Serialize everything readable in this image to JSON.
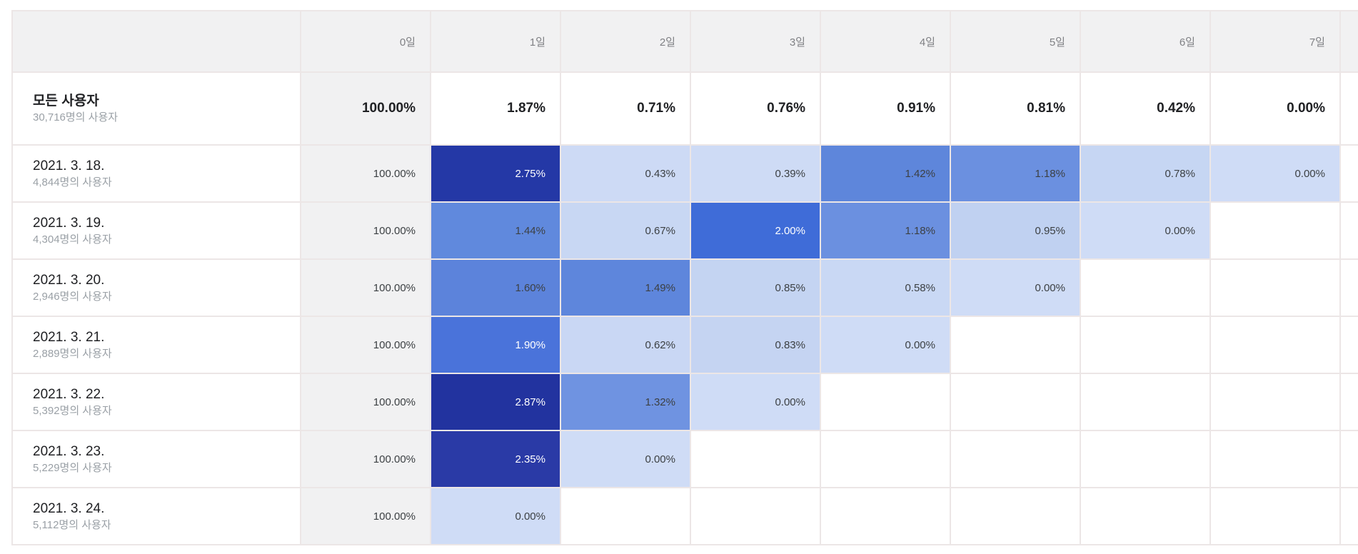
{
  "table": {
    "day_headers": [
      "0일",
      "1일",
      "2일",
      "3일",
      "4일",
      "5일",
      "6일",
      "7일"
    ],
    "all_users": {
      "title": "모든 사용자",
      "subtitle": "30,716명의 사용자",
      "cells": [
        {
          "v": "100.00%",
          "bg": "#f1f1f2",
          "fg": "#202124"
        },
        {
          "v": "1.87%",
          "bg": "#ffffff",
          "fg": "#202124"
        },
        {
          "v": "0.71%",
          "bg": "#ffffff",
          "fg": "#202124"
        },
        {
          "v": "0.76%",
          "bg": "#ffffff",
          "fg": "#202124"
        },
        {
          "v": "0.91%",
          "bg": "#ffffff",
          "fg": "#202124"
        },
        {
          "v": "0.81%",
          "bg": "#ffffff",
          "fg": "#202124"
        },
        {
          "v": "0.42%",
          "bg": "#ffffff",
          "fg": "#202124"
        },
        {
          "v": "0.00%",
          "bg": "#ffffff",
          "fg": "#202124"
        }
      ]
    },
    "cohorts": [
      {
        "date": "2021. 3. 18.",
        "subtitle": "4,844명의 사용자",
        "cells": [
          {
            "v": "100.00%",
            "bg": "#f1f1f2",
            "fg": "#3c4043"
          },
          {
            "v": "2.75%",
            "bg": "#2438a6",
            "fg": "#ffffff"
          },
          {
            "v": "0.43%",
            "bg": "#cddaf5",
            "fg": "#3c4043"
          },
          {
            "v": "0.39%",
            "bg": "#cedbf5",
            "fg": "#3c4043"
          },
          {
            "v": "1.42%",
            "bg": "#5e86db",
            "fg": "#3c4043"
          },
          {
            "v": "1.18%",
            "bg": "#6b90e0",
            "fg": "#3c4043"
          },
          {
            "v": "0.78%",
            "bg": "#c6d6f3",
            "fg": "#3c4043"
          },
          {
            "v": "0.00%",
            "bg": "#cfdcf6",
            "fg": "#3c4043"
          }
        ]
      },
      {
        "date": "2021. 3. 19.",
        "subtitle": "4,304명의 사용자",
        "cells": [
          {
            "v": "100.00%",
            "bg": "#f1f1f2",
            "fg": "#3c4043"
          },
          {
            "v": "1.44%",
            "bg": "#6089dd",
            "fg": "#3c4043"
          },
          {
            "v": "0.67%",
            "bg": "#c8d7f3",
            "fg": "#3c4043"
          },
          {
            "v": "2.00%",
            "bg": "#3f6cd8",
            "fg": "#ffffff"
          },
          {
            "v": "1.18%",
            "bg": "#6b90e0",
            "fg": "#3c4043"
          },
          {
            "v": "0.95%",
            "bg": "#c0d1f1",
            "fg": "#3c4043"
          },
          {
            "v": "0.00%",
            "bg": "#cfdcf6",
            "fg": "#3c4043"
          },
          null
        ]
      },
      {
        "date": "2021. 3. 20.",
        "subtitle": "2,946명의 사용자",
        "cells": [
          {
            "v": "100.00%",
            "bg": "#f1f1f2",
            "fg": "#3c4043"
          },
          {
            "v": "1.60%",
            "bg": "#5c83db",
            "fg": "#3c4043"
          },
          {
            "v": "1.49%",
            "bg": "#5e86dc",
            "fg": "#3c4043"
          },
          {
            "v": "0.85%",
            "bg": "#c4d4f2",
            "fg": "#3c4043"
          },
          {
            "v": "0.58%",
            "bg": "#c9d8f4",
            "fg": "#3c4043"
          },
          {
            "v": "0.00%",
            "bg": "#cfdcf6",
            "fg": "#3c4043"
          },
          null,
          null
        ]
      },
      {
        "date": "2021. 3. 21.",
        "subtitle": "2,889명의 사용자",
        "cells": [
          {
            "v": "100.00%",
            "bg": "#f1f1f2",
            "fg": "#3c4043"
          },
          {
            "v": "1.90%",
            "bg": "#4a73da",
            "fg": "#ffffff"
          },
          {
            "v": "0.62%",
            "bg": "#c9d7f4",
            "fg": "#3c4043"
          },
          {
            "v": "0.83%",
            "bg": "#c5d4f2",
            "fg": "#3c4043"
          },
          {
            "v": "0.00%",
            "bg": "#cfdcf6",
            "fg": "#3c4043"
          },
          null,
          null,
          null
        ]
      },
      {
        "date": "2021. 3. 22.",
        "subtitle": "5,392명의 사용자",
        "cells": [
          {
            "v": "100.00%",
            "bg": "#f1f1f2",
            "fg": "#3c4043"
          },
          {
            "v": "2.87%",
            "bg": "#22339f",
            "fg": "#ffffff"
          },
          {
            "v": "1.32%",
            "bg": "#6f93e1",
            "fg": "#3c4043"
          },
          {
            "v": "0.00%",
            "bg": "#cfdcf6",
            "fg": "#3c4043"
          },
          null,
          null,
          null,
          null
        ]
      },
      {
        "date": "2021. 3. 23.",
        "subtitle": "5,229명의 사용자",
        "cells": [
          {
            "v": "100.00%",
            "bg": "#f1f1f2",
            "fg": "#3c4043"
          },
          {
            "v": "2.35%",
            "bg": "#2a3aa6",
            "fg": "#ffffff"
          },
          {
            "v": "0.00%",
            "bg": "#cfdcf6",
            "fg": "#3c4043"
          },
          null,
          null,
          null,
          null,
          null
        ]
      },
      {
        "date": "2021. 3. 24.",
        "subtitle": "5,112명의 사용자",
        "cells": [
          {
            "v": "100.00%",
            "bg": "#f1f1f2",
            "fg": "#3c4043"
          },
          {
            "v": "0.00%",
            "bg": "#cfdcf6",
            "fg": "#3c4043"
          },
          null,
          null,
          null,
          null,
          null,
          null
        ]
      }
    ],
    "colors": {
      "header_bg": "#f1f1f2",
      "header_text": "#7f8084",
      "grid_line": "#ece6e6",
      "title_text": "#202124",
      "subtitle_text": "#9aa0a6",
      "value_text": "#3c4043",
      "value_text_on_dark": "#ffffff",
      "heat_min": "#cfdcf6",
      "heat_max": "#22339f"
    }
  },
  "chart_data": {
    "type": "heatmap",
    "title": "User retention cohort table (Korean locale)",
    "columns": [
      "0일",
      "1일",
      "2일",
      "3일",
      "4일",
      "5일",
      "6일",
      "7일"
    ],
    "value_unit": "%",
    "rows": [
      {
        "label": "모든 사용자",
        "users_label": "30,716명의 사용자",
        "users": 30716,
        "values": [
          100.0,
          1.87,
          0.71,
          0.76,
          0.91,
          0.81,
          0.42,
          0.0
        ]
      },
      {
        "label": "2021. 3. 18.",
        "users_label": "4,844명의 사용자",
        "users": 4844,
        "values": [
          100.0,
          2.75,
          0.43,
          0.39,
          1.42,
          1.18,
          0.78,
          0.0
        ]
      },
      {
        "label": "2021. 3. 19.",
        "users_label": "4,304명의 사용자",
        "users": 4304,
        "values": [
          100.0,
          1.44,
          0.67,
          2.0,
          1.18,
          0.95,
          0.0,
          null
        ]
      },
      {
        "label": "2021. 3. 20.",
        "users_label": "2,946명의 사용자",
        "users": 2946,
        "values": [
          100.0,
          1.6,
          1.49,
          0.85,
          0.58,
          0.0,
          null,
          null
        ]
      },
      {
        "label": "2021. 3. 21.",
        "users_label": "2,889명의 사용자",
        "users": 2889,
        "values": [
          100.0,
          1.9,
          0.62,
          0.83,
          0.0,
          null,
          null,
          null
        ]
      },
      {
        "label": "2021. 3. 22.",
        "users_label": "5,392명의 사용자",
        "users": 5392,
        "values": [
          100.0,
          2.87,
          1.32,
          0.0,
          null,
          null,
          null,
          null
        ]
      },
      {
        "label": "2021. 3. 23.",
        "users_label": "5,229명의 사용자",
        "users": 5229,
        "values": [
          100.0,
          2.35,
          0.0,
          null,
          null,
          null,
          null,
          null
        ]
      },
      {
        "label": "2021. 3. 24.",
        "users_label": "5,112명의 사용자",
        "users": 5112,
        "values": [
          100.0,
          0.0,
          null,
          null,
          null,
          null,
          null,
          null
        ]
      }
    ],
    "layout": {
      "row_label_column": "cohort start date + cohort size",
      "color_scale": "light blue (low %) to dark navy (high %)",
      "empty_cells": "future days not yet observed"
    }
  }
}
